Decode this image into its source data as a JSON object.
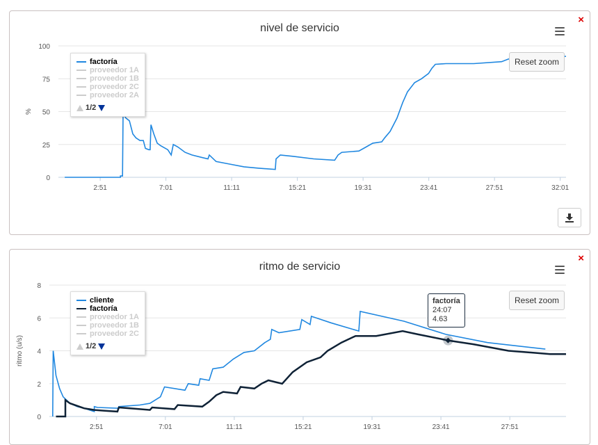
{
  "charts": [
    {
      "title": "nivel de servicio",
      "reset_label": "Reset zoom",
      "ylabel": "%",
      "legend": {
        "items": [
          {
            "label": "factoría",
            "color": "#1f87e0",
            "active": true
          },
          {
            "label": "proveedor 1A",
            "active": false
          },
          {
            "label": "proveedor 1B",
            "active": false
          },
          {
            "label": "proveedor 2C",
            "active": false
          },
          {
            "label": "proveedor 2A",
            "active": false
          }
        ],
        "page": "1/2"
      },
      "close_icon": "×"
    },
    {
      "title": "ritmo de servicio",
      "reset_label": "Reset zoom",
      "ylabel": "ritmo (u/s)",
      "legend": {
        "items": [
          {
            "label": "cliente",
            "color": "#1f87e0",
            "active": true
          },
          {
            "label": "factoría",
            "color": "#0f2236",
            "active": true
          },
          {
            "label": "proveedor 1A",
            "active": false
          },
          {
            "label": "proveedor 1B",
            "active": false
          },
          {
            "label": "proveedor 2C",
            "active": false
          }
        ],
        "page": "1/2"
      },
      "tooltip": {
        "series": "factoría",
        "time": "24:07",
        "value": "4.63"
      },
      "close_icon": "×"
    }
  ],
  "chart_data": [
    {
      "type": "line",
      "title": "nivel de servicio",
      "ylabel": "%",
      "xlabel": "",
      "x_unit": "seconds (shown as m:ss)",
      "xticks": [
        "2:51",
        "7:01",
        "11:11",
        "15:21",
        "19:31",
        "23:41",
        "27:51",
        "32:01"
      ],
      "yticks": [
        0,
        25,
        50,
        75,
        100
      ],
      "ylim": [
        0,
        100
      ],
      "xlim": [
        12,
        1943
      ],
      "grid": true,
      "legend": "top-left",
      "series": [
        {
          "name": "factoría",
          "color": "#1f87e0",
          "points": [
            [
              36,
              0
            ],
            [
              248,
              0
            ],
            [
              248,
              1
            ],
            [
              256,
              1
            ],
            [
              258,
              48
            ],
            [
              269,
              45
            ],
            [
              282,
              43
            ],
            [
              295,
              33
            ],
            [
              307,
              30
            ],
            [
              322,
              28
            ],
            [
              335,
              28
            ],
            [
              343,
              22
            ],
            [
              356,
              21
            ],
            [
              361,
              21
            ],
            [
              364,
              40
            ],
            [
              375,
              33
            ],
            [
              388,
              26
            ],
            [
              401,
              24
            ],
            [
              428,
              21
            ],
            [
              441,
              17
            ],
            [
              449,
              25
            ],
            [
              467,
              23
            ],
            [
              494,
              19
            ],
            [
              520,
              17
            ],
            [
              560,
              15
            ],
            [
              581,
              14
            ],
            [
              586,
              17
            ],
            [
              612,
              12
            ],
            [
              665,
              10
            ],
            [
              718,
              8
            ],
            [
              771,
              7
            ],
            [
              837,
              6
            ],
            [
              840,
              14
            ],
            [
              856,
              17
            ],
            [
              904,
              16
            ],
            [
              983,
              14
            ],
            [
              1063,
              13
            ],
            [
              1076,
              17
            ],
            [
              1090,
              19
            ],
            [
              1155,
              20
            ],
            [
              1182,
              23
            ],
            [
              1208,
              26
            ],
            [
              1242,
              27
            ],
            [
              1253,
              30
            ],
            [
              1274,
              35
            ],
            [
              1300,
              45
            ],
            [
              1322,
              57
            ],
            [
              1340,
              65
            ],
            [
              1367,
              72
            ],
            [
              1393,
              75
            ],
            [
              1420,
              79
            ],
            [
              1433,
              83
            ],
            [
              1446,
              86
            ],
            [
              1486,
              86.5
            ],
            [
              1592,
              86.5
            ],
            [
              1698,
              88
            ],
            [
              1724,
              90
            ],
            [
              1803,
              92
            ],
            [
              1943,
              92
            ]
          ]
        }
      ]
    },
    {
      "type": "line",
      "title": "ritmo de servicio",
      "ylabel": "ritmo (u/s)",
      "xlabel": "",
      "x_unit": "seconds (shown as m:ss)",
      "xticks": [
        "2:51",
        "7:01",
        "11:11",
        "15:21",
        "19:31",
        "23:41",
        "27:51"
      ],
      "yticks": [
        0,
        2,
        4,
        6,
        8
      ],
      "ylim": [
        0,
        8
      ],
      "xlim": [
        0,
        1875
      ],
      "grid": true,
      "legend": "top-left",
      "series": [
        {
          "name": "cliente",
          "color": "#1f87e0",
          "points": [
            [
              12,
              0
            ],
            [
              14,
              4
            ],
            [
              24,
              2.5
            ],
            [
              37,
              1.7
            ],
            [
              50,
              1.2
            ],
            [
              75,
              0.8
            ],
            [
              101,
              0.6
            ],
            [
              126,
              0.5
            ],
            [
              163,
              0.3
            ],
            [
              163,
              0.6
            ],
            [
              175,
              0.55
            ],
            [
              252,
              0.5
            ],
            [
              252,
              0.6
            ],
            [
              328,
              0.7
            ],
            [
              365,
              0.8
            ],
            [
              403,
              1.2
            ],
            [
              418,
              1.8
            ],
            [
              492,
              1.6
            ],
            [
              504,
              2.0
            ],
            [
              542,
              1.9
            ],
            [
              547,
              2.3
            ],
            [
              580,
              2.2
            ],
            [
              593,
              2.9
            ],
            [
              631,
              3.0
            ],
            [
              668,
              3.5
            ],
            [
              706,
              3.9
            ],
            [
              744,
              4.0
            ],
            [
              782,
              4.5
            ],
            [
              802,
              4.7
            ],
            [
              807,
              5.3
            ],
            [
              833,
              5.1
            ],
            [
              909,
              5.3
            ],
            [
              916,
              5.9
            ],
            [
              946,
              5.6
            ],
            [
              951,
              6.1
            ],
            [
              1022,
              5.7
            ],
            [
              1123,
              5.2
            ],
            [
              1128,
              6.4
            ],
            [
              1287,
              5.8
            ],
            [
              1439,
              5.0
            ],
            [
              1590,
              4.5
            ],
            [
              1800,
              4.1
            ]
          ]
        },
        {
          "name": "factoría",
          "color": "#0f2236",
          "points": [
            [
              24,
              0
            ],
            [
              58,
              0
            ],
            [
              58,
              1.0
            ],
            [
              75,
              0.8
            ],
            [
              126,
              0.5
            ],
            [
              163,
              0.4
            ],
            [
              201,
              0.35
            ],
            [
              247,
              0.3
            ],
            [
              252,
              0.55
            ],
            [
              328,
              0.45
            ],
            [
              365,
              0.4
            ],
            [
              373,
              0.55
            ],
            [
              454,
              0.45
            ],
            [
              466,
              0.7
            ],
            [
              555,
              0.6
            ],
            [
              580,
              0.9
            ],
            [
              606,
              1.3
            ],
            [
              631,
              1.5
            ],
            [
              681,
              1.4
            ],
            [
              694,
              1.8
            ],
            [
              744,
              1.7
            ],
            [
              770,
              2.0
            ],
            [
              795,
              2.2
            ],
            [
              845,
              2.0
            ],
            [
              883,
              2.7
            ],
            [
              934,
              3.3
            ],
            [
              984,
              3.6
            ],
            [
              1010,
              4.0
            ],
            [
              1060,
              4.5
            ],
            [
              1111,
              4.9
            ],
            [
              1186,
              4.9
            ],
            [
              1282,
              5.2
            ],
            [
              1338,
              5.0
            ],
            [
              1447,
              4.63
            ],
            [
              1539,
              4.4
            ],
            [
              1666,
              4.0
            ],
            [
              1817,
              3.8
            ],
            [
              1875,
              3.8
            ]
          ]
        }
      ],
      "highlight": {
        "series": "factoría",
        "x": 1447,
        "y": 4.63
      }
    }
  ]
}
